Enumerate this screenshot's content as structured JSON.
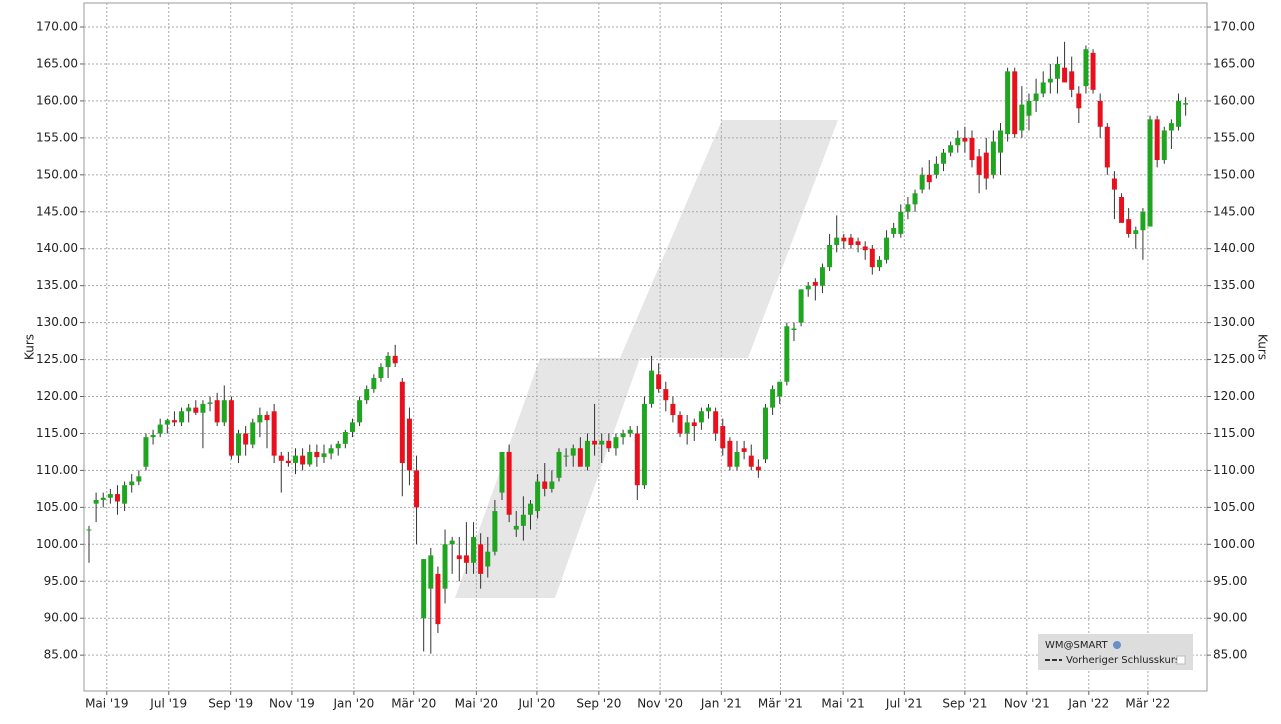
{
  "chart_data": {
    "type": "candlestick",
    "y_label": "Kurs",
    "legend": [
      "WM@SMART",
      "Vorheriger Schlusskurs"
    ],
    "up_color": "#1fa51f",
    "down_color": "#e8101c",
    "grid": true,
    "ylim": [
      80.15,
      173.25
    ],
    "yticks": [
      {
        "value": 85,
        "label": "85.00"
      },
      {
        "value": 90,
        "label": "90.00"
      },
      {
        "value": 95,
        "label": "95.00"
      },
      {
        "value": 100,
        "label": "100.00"
      },
      {
        "value": 105,
        "label": "105.00"
      },
      {
        "value": 110,
        "label": "110.00"
      },
      {
        "value": 115,
        "label": "115.00"
      },
      {
        "value": 120,
        "label": "120.00"
      },
      {
        "value": 125,
        "label": "125.00"
      },
      {
        "value": 130,
        "label": "130.00"
      },
      {
        "value": 135,
        "label": "135.00"
      },
      {
        "value": 140,
        "label": "140.00"
      },
      {
        "value": 145,
        "label": "145.00"
      },
      {
        "value": 150,
        "label": "150.00"
      },
      {
        "value": 155,
        "label": "155.00"
      },
      {
        "value": 160,
        "label": "160.00"
      },
      {
        "value": 165,
        "label": "165.00"
      },
      {
        "value": 170,
        "label": "170.00"
      }
    ],
    "xlim": [
      -0.7,
      157
    ],
    "xticks": [
      {
        "value": 2.5,
        "label": "Mai '19"
      },
      {
        "value": 11.2,
        "label": "Jul '19"
      },
      {
        "value": 19.9,
        "label": "Sep '19"
      },
      {
        "value": 28.5,
        "label": "Nov '19"
      },
      {
        "value": 37.2,
        "label": "Jan '20"
      },
      {
        "value": 45.6,
        "label": "Mär '20"
      },
      {
        "value": 54.4,
        "label": "Mai '20"
      },
      {
        "value": 62.9,
        "label": "Jul '20"
      },
      {
        "value": 71.6,
        "label": "Sep '20"
      },
      {
        "value": 80.2,
        "label": "Nov '20"
      },
      {
        "value": 88.8,
        "label": "Jan '21"
      },
      {
        "value": 97.1,
        "label": "Mär '21"
      },
      {
        "value": 105.9,
        "label": "Mai '21"
      },
      {
        "value": 114.5,
        "label": "Jul '21"
      },
      {
        "value": 123,
        "label": "Sep '21"
      },
      {
        "value": 131.7,
        "label": "Nov '21"
      },
      {
        "value": 140.4,
        "label": "Jan '22"
      },
      {
        "value": 148.7,
        "label": "Mär '22"
      }
    ],
    "ohlc": [
      [
        102,
        102.5,
        97.5,
        102
      ],
      [
        105.5,
        107,
        103,
        106
      ],
      [
        106,
        107,
        105,
        106.3
      ],
      [
        106.3,
        107.5,
        105.5,
        106.8
      ],
      [
        106.8,
        108,
        104,
        105.8
      ],
      [
        105.5,
        108.5,
        104.5,
        108
      ],
      [
        108,
        109.5,
        107,
        108.5
      ],
      [
        108.5,
        110,
        108,
        109.2
      ],
      [
        110.5,
        115,
        110,
        114.5
      ],
      [
        114.5,
        115.5,
        113.5,
        114.8
      ],
      [
        115,
        117,
        114.5,
        116.2
      ],
      [
        116.2,
        117,
        115,
        116.8
      ],
      [
        116.8,
        118,
        116,
        116.5
      ],
      [
        116.5,
        118.5,
        116,
        118
      ],
      [
        118,
        119,
        116.5,
        118.5
      ],
      [
        118.5,
        119.5,
        117.5,
        117.8
      ],
      [
        117.8,
        119.5,
        113,
        119
      ],
      [
        119,
        120,
        118,
        119.2
      ],
      [
        119.5,
        120.5,
        116,
        116.5
      ],
      [
        116.5,
        121.5,
        116,
        119.5
      ],
      [
        119.5,
        120,
        111.5,
        112
      ],
      [
        112,
        115.5,
        111,
        115
      ],
      [
        115,
        116,
        112,
        113.5
      ],
      [
        113.5,
        117,
        113,
        116.5
      ],
      [
        116.5,
        118.5,
        114.5,
        117.5
      ],
      [
        117.5,
        118,
        113,
        116.8
      ],
      [
        118,
        119,
        111,
        112
      ],
      [
        112,
        112.5,
        107,
        111.3
      ],
      [
        111.3,
        112.5,
        110.5,
        111
      ],
      [
        111,
        113,
        109.5,
        112
      ],
      [
        112,
        113,
        110,
        110.8
      ],
      [
        110.8,
        113.5,
        110.5,
        112.5
      ],
      [
        112.5,
        113.5,
        110.5,
        111.8
      ],
      [
        111.8,
        113.5,
        111,
        112.3
      ],
      [
        112.3,
        113.5,
        111.5,
        113
      ],
      [
        113,
        114,
        112,
        113.6
      ],
      [
        113.6,
        115.5,
        113,
        115.2
      ],
      [
        115.2,
        117,
        114.5,
        116.5
      ],
      [
        116.5,
        120,
        116,
        119.5
      ],
      [
        119.5,
        121.5,
        119,
        121
      ],
      [
        121,
        123,
        120.5,
        122.5
      ],
      [
        122.5,
        124.5,
        122,
        124
      ],
      [
        124,
        126,
        122.5,
        125.5
      ],
      [
        125.5,
        127,
        124,
        124.5
      ],
      [
        122,
        122.5,
        106.5,
        111
      ],
      [
        117,
        118.5,
        108,
        110
      ],
      [
        110,
        112,
        100,
        105
      ],
      [
        90,
        98,
        85.5,
        98
      ],
      [
        94,
        99.5,
        85.2,
        98.5
      ],
      [
        96,
        97,
        88,
        89.2
      ],
      [
        94,
        102,
        92,
        100
      ],
      [
        100,
        101,
        96,
        100.5
      ],
      [
        98.5,
        101,
        95,
        98
      ],
      [
        98.5,
        103,
        96,
        97.5
      ],
      [
        97.5,
        103,
        96,
        101
      ],
      [
        100,
        101.5,
        94,
        96
      ],
      [
        97,
        101,
        95.5,
        99
      ],
      [
        99,
        106,
        98.5,
        104.5
      ],
      [
        107,
        112.5,
        106,
        112.5
      ],
      [
        112.5,
        113.5,
        103,
        104
      ],
      [
        102,
        104.5,
        101,
        102.5
      ],
      [
        102.5,
        106.5,
        100.5,
        104
      ],
      [
        104,
        106,
        102,
        105.5
      ],
      [
        104.5,
        109.5,
        103.5,
        108.5
      ],
      [
        108.5,
        111,
        106.5,
        107.5
      ],
      [
        107.5,
        110,
        107,
        108.5
      ],
      [
        109,
        113,
        108.5,
        112.5
      ],
      [
        112,
        113,
        110.5,
        112
      ],
      [
        112,
        113.5,
        110.5,
        113
      ],
      [
        113,
        114.5,
        111,
        110.5
      ],
      [
        110.5,
        115,
        110,
        114
      ],
      [
        114,
        119,
        112,
        113.5
      ],
      [
        113.5,
        115,
        111,
        114
      ],
      [
        114,
        115,
        112.5,
        113
      ],
      [
        113,
        115,
        112,
        114.5
      ],
      [
        114.5,
        115.5,
        113.5,
        115
      ],
      [
        115,
        116,
        114.5,
        115.5
      ],
      [
        115,
        116,
        106,
        108
      ],
      [
        108,
        120,
        107.5,
        119
      ],
      [
        119,
        125.5,
        118.5,
        123.5
      ],
      [
        123,
        124.5,
        120.5,
        121
      ],
      [
        121,
        122,
        118,
        119.5
      ],
      [
        119,
        120,
        116.5,
        117.5
      ],
      [
        117.5,
        118,
        114.5,
        115
      ],
      [
        115,
        117.5,
        113.5,
        116.5
      ],
      [
        116.5,
        117,
        114,
        116
      ],
      [
        116.5,
        118.5,
        115.5,
        118
      ],
      [
        118,
        119,
        117,
        118.5
      ],
      [
        118,
        118.5,
        114,
        115
      ],
      [
        116,
        117,
        112,
        113
      ],
      [
        114,
        114.5,
        110,
        110.5
      ],
      [
        110.5,
        114,
        110,
        112.5
      ],
      [
        113,
        114,
        111.5,
        112.5
      ],
      [
        112,
        113.5,
        110,
        110.5
      ],
      [
        110.5,
        111.5,
        109,
        110
      ],
      [
        111.5,
        119,
        111,
        118.5
      ],
      [
        118.5,
        121.5,
        117.5,
        121
      ],
      [
        120,
        122,
        119,
        122
      ],
      [
        122,
        130,
        121.5,
        129.5
      ],
      [
        129,
        130,
        127.5,
        129.2
      ],
      [
        130,
        134.5,
        129.5,
        134.5
      ],
      [
        134.5,
        135.5,
        133.5,
        135
      ],
      [
        135.5,
        136,
        133,
        135
      ],
      [
        135,
        138,
        134,
        137.5
      ],
      [
        137.5,
        142,
        137,
        140.5
      ],
      [
        140.5,
        144.5,
        139.5,
        141.5
      ],
      [
        141.5,
        142,
        140,
        141
      ],
      [
        141.5,
        142,
        140,
        140.5
      ],
      [
        141,
        141.5,
        139.5,
        140.5
      ],
      [
        140.3,
        141,
        138.5,
        139.8
      ],
      [
        140,
        140.5,
        136.5,
        137.5
      ],
      [
        137.5,
        139,
        137,
        138.5
      ],
      [
        138.5,
        142.5,
        138,
        141.5
      ],
      [
        142,
        143.5,
        141.5,
        142.8
      ],
      [
        142,
        146,
        141.5,
        145
      ],
      [
        145,
        147,
        144,
        146
      ],
      [
        146,
        148,
        145,
        147.5
      ],
      [
        148,
        151,
        147.5,
        150
      ],
      [
        150,
        152,
        148,
        149
      ],
      [
        150,
        152.5,
        149.5,
        151.5
      ],
      [
        151.5,
        153.5,
        150.5,
        153
      ],
      [
        153,
        154.5,
        152.5,
        154
      ],
      [
        154,
        156,
        153,
        155
      ],
      [
        155,
        156.5,
        153,
        154.5
      ],
      [
        155,
        156,
        151,
        152
      ],
      [
        152.5,
        153.5,
        147.5,
        150
      ],
      [
        153,
        155,
        148,
        149.5
      ],
      [
        150,
        156,
        149.5,
        154.5
      ],
      [
        153,
        157,
        150,
        156
      ],
      [
        155.5,
        164.5,
        154.5,
        164
      ],
      [
        164,
        164.5,
        155,
        155.5
      ],
      [
        156,
        162,
        155,
        159.5
      ],
      [
        158,
        161,
        156,
        160
      ],
      [
        160,
        163,
        158.5,
        161
      ],
      [
        161,
        164,
        160.5,
        162.5
      ],
      [
        162.5,
        165,
        161,
        163
      ],
      [
        163,
        166,
        161,
        165
      ],
      [
        164.5,
        168,
        163,
        162.5
      ],
      [
        164,
        166,
        160.5,
        161.5
      ],
      [
        161,
        162,
        157,
        159
      ],
      [
        162,
        167.5,
        161,
        167
      ],
      [
        166.5,
        167,
        161,
        161.5
      ],
      [
        160,
        161,
        155,
        156.5
      ],
      [
        156.5,
        157,
        150,
        151
      ],
      [
        149.5,
        150.5,
        144,
        148
      ],
      [
        147,
        147.5,
        143.5,
        143.5
      ],
      [
        144,
        145.5,
        141.5,
        142
      ],
      [
        142,
        143,
        140,
        142.5
      ],
      [
        142.5,
        145.5,
        138.5,
        145
      ],
      [
        143,
        158,
        143,
        157.5
      ],
      [
        157.5,
        158,
        151,
        152
      ],
      [
        152,
        156.5,
        151.5,
        156
      ],
      [
        156,
        157.5,
        153.5,
        157
      ],
      [
        156.5,
        161,
        156,
        160
      ],
      [
        159.5,
        160.5,
        158,
        159.7
      ]
    ]
  }
}
